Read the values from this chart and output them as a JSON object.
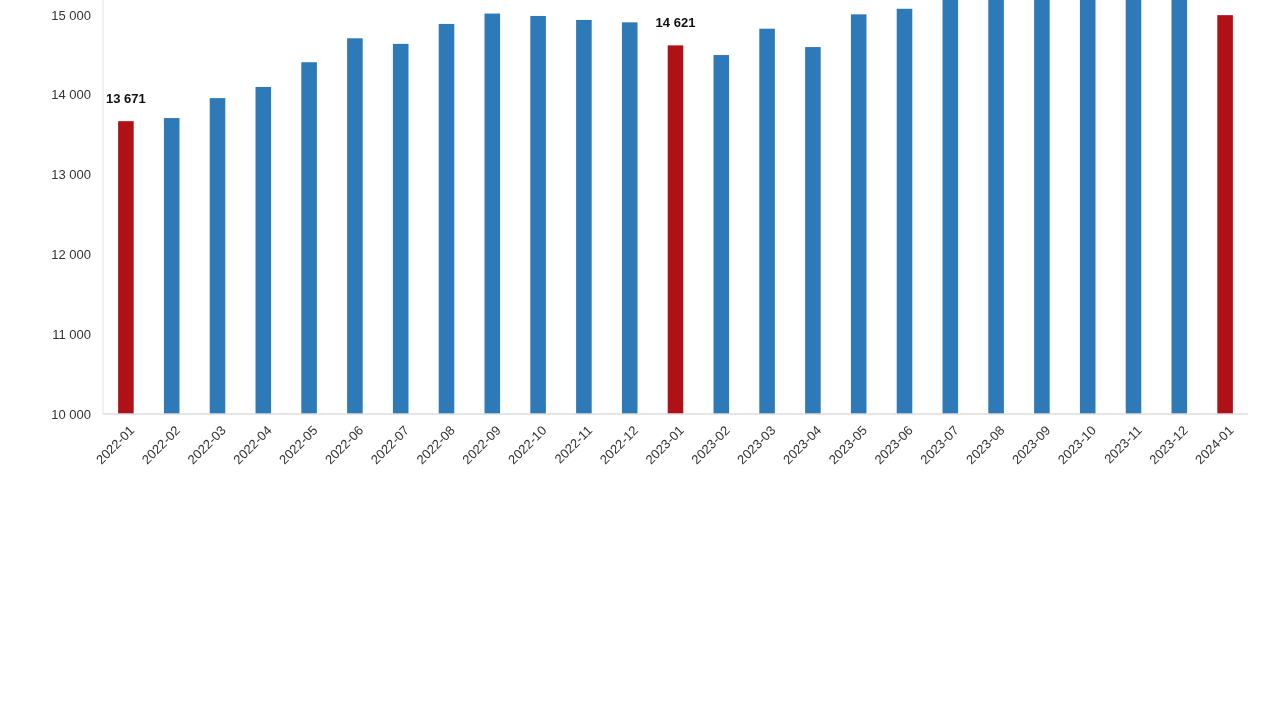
{
  "chart_data": {
    "type": "bar",
    "categories": [
      "2022-01",
      "2022-02",
      "2022-03",
      "2022-04",
      "2022-05",
      "2022-06",
      "2022-07",
      "2022-08",
      "2022-09",
      "2022-10",
      "2022-11",
      "2022-12",
      "2023-01",
      "2023-02",
      "2023-03",
      "2023-04",
      "2023-05",
      "2023-06",
      "2023-07",
      "2023-08",
      "2023-09",
      "2023-10",
      "2023-11",
      "2023-12",
      "2024-01"
    ],
    "values": [
      13671,
      13710,
      13960,
      14100,
      14410,
      14710,
      14640,
      14890,
      15020,
      14990,
      14940,
      14910,
      14621,
      14500,
      14830,
      14600,
      15010,
      15080,
      15190,
      15190,
      15190,
      15190,
      15190,
      15190,
      15000
    ],
    "colors": [
      "#b01116",
      "#2e7ab8",
      "#2e7ab8",
      "#2e7ab8",
      "#2e7ab8",
      "#2e7ab8",
      "#2e7ab8",
      "#2e7ab8",
      "#2e7ab8",
      "#2e7ab8",
      "#2e7ab8",
      "#2e7ab8",
      "#b01116",
      "#2e7ab8",
      "#2e7ab8",
      "#2e7ab8",
      "#2e7ab8",
      "#2e7ab8",
      "#2e7ab8",
      "#2e7ab8",
      "#2e7ab8",
      "#2e7ab8",
      "#2e7ab8",
      "#2e7ab8",
      "#b01116"
    ],
    "value_labels": [
      "13 671",
      null,
      null,
      null,
      null,
      null,
      null,
      null,
      null,
      null,
      null,
      null,
      "14 621",
      null,
      null,
      null,
      null,
      null,
      null,
      null,
      null,
      null,
      null,
      null,
      null
    ],
    "ylim": [
      10000,
      15190
    ],
    "yticks": [
      {
        "value": 10000,
        "label": "10 000"
      },
      {
        "value": 11000,
        "label": "11 000"
      },
      {
        "value": 12000,
        "label": "12 000"
      },
      {
        "value": 13000,
        "label": "13 000"
      },
      {
        "value": 14000,
        "label": "14 000"
      },
      {
        "value": 15000,
        "label": "15 000"
      }
    ],
    "grid": false
  }
}
